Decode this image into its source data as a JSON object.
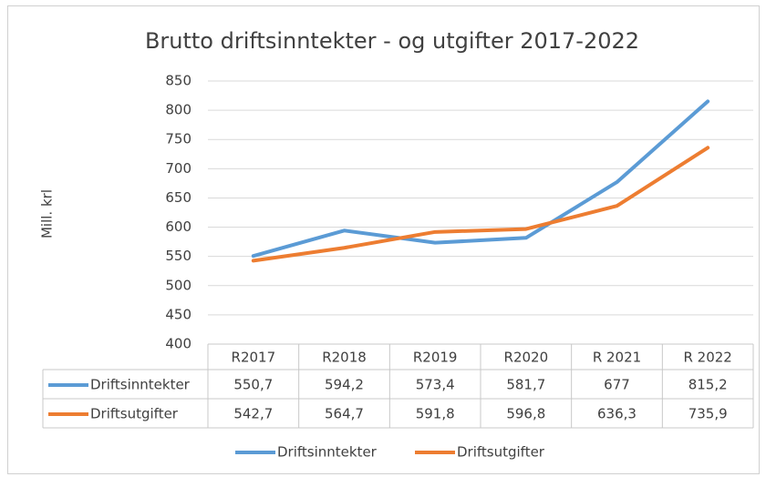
{
  "chart_data": {
    "type": "line",
    "title": "Brutto driftsinntekter - og utgifter 2017-2022",
    "ylabel": "Mill. krl",
    "categories": [
      "R2017",
      "R2018",
      "R2019",
      "R2020",
      "R 2021",
      "R 2022"
    ],
    "series": [
      {
        "name": "Driftsinntekter",
        "color": "#5b9bd5",
        "values": [
          550.7,
          594.2,
          573.4,
          581.7,
          677,
          815.2
        ],
        "value_labels": [
          "550,7",
          "594,2",
          "573,4",
          "581,7",
          "677",
          "815,2"
        ]
      },
      {
        "name": "Driftsutgifter",
        "color": "#ed7d31",
        "values": [
          542.7,
          564.7,
          591.8,
          596.8,
          636.3,
          735.9
        ],
        "value_labels": [
          "542,7",
          "564,7",
          "591,8",
          "596,8",
          "636,3",
          "735,9"
        ]
      }
    ],
    "ylim": [
      400,
      850
    ],
    "yticks": [
      400,
      450,
      500,
      550,
      600,
      650,
      700,
      750,
      800,
      850
    ],
    "grid": true,
    "legend": "bottom"
  }
}
